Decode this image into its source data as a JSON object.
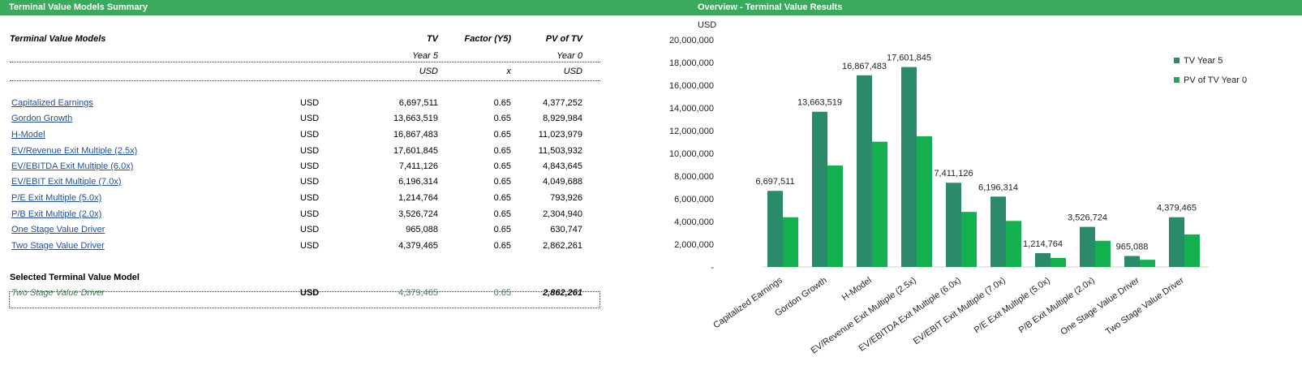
{
  "left_header": "Terminal Value Models Summary",
  "right_header": "Overview  - Terminal Value Results",
  "table": {
    "title": "Terminal Value Models",
    "col_tv": "TV",
    "col_factor": "Factor (Y5)",
    "col_pv": "PV of TV",
    "sub_tv": "Year 5",
    "sub_pv": "Year 0",
    "unit_tv": "USD",
    "unit_factor": "x",
    "unit_pv": "USD",
    "rows": [
      {
        "name": "Capitalized Earnings",
        "currency": "USD",
        "tv": "6,697,511",
        "factor": "0.65",
        "pv": "4,377,252"
      },
      {
        "name": "Gordon Growth",
        "currency": "USD",
        "tv": "13,663,519",
        "factor": "0.65",
        "pv": "8,929,984"
      },
      {
        "name": "H-Model",
        "currency": "USD",
        "tv": "16,867,483",
        "factor": "0.65",
        "pv": "11,023,979"
      },
      {
        "name": "EV/Revenue Exit Multiple (2.5x)",
        "currency": "USD",
        "tv": "17,601,845",
        "factor": "0.65",
        "pv": "11,503,932"
      },
      {
        "name": "EV/EBITDA Exit Multiple (6.0x)",
        "currency": "USD",
        "tv": "7,411,126",
        "factor": "0.65",
        "pv": "4,843,645"
      },
      {
        "name": "EV/EBIT Exit Multiple (7.0x)",
        "currency": "USD",
        "tv": "6,196,314",
        "factor": "0.65",
        "pv": "4,049,688"
      },
      {
        "name": "P/E Exit Multiple (5.0x)",
        "currency": "USD",
        "tv": "1,214,764",
        "factor": "0.65",
        "pv": "793,926"
      },
      {
        "name": "P/B Exit Multiple (2.0x)",
        "currency": "USD",
        "tv": "3,526,724",
        "factor": "0.65",
        "pv": "2,304,940"
      },
      {
        "name": "One Stage Value Driver",
        "currency": "USD",
        "tv": "965,088",
        "factor": "0.65",
        "pv": "630,747"
      },
      {
        "name": "Two Stage Value Driver",
        "currency": "USD",
        "tv": "4,379,465",
        "factor": "0.65",
        "pv": "2,862,261"
      }
    ],
    "selected_label": "Selected Terminal Value Model",
    "selected": {
      "name": "Two Stage Value Driver",
      "currency": "USD",
      "tv": "4,379,465",
      "factor": "0.65",
      "pv": "2,862,261"
    }
  },
  "chart_data": {
    "type": "bar",
    "ylabel": "USD",
    "ylim": [
      0,
      20000000
    ],
    "yticks": [
      "-",
      "2,000,000",
      "4,000,000",
      "6,000,000",
      "8,000,000",
      "10,000,000",
      "12,000,000",
      "14,000,000",
      "16,000,000",
      "18,000,000",
      "20,000,000"
    ],
    "categories": [
      "Capitalized Earnings",
      "Gordon Growth",
      "H-Model",
      "EV/Revenue Exit Multiple (2.5x)",
      "EV/EBITDA Exit Multiple (6.0x)",
      "EV/EBIT Exit Multiple (7.0x)",
      "P/E Exit Multiple (5.0x)",
      "P/B Exit Multiple (2.0x)",
      "One Stage Value Driver",
      "Two Stage Value Driver"
    ],
    "series": [
      {
        "name": "TV Year 5",
        "color": "#2a8a6a",
        "values": [
          6697511,
          13663519,
          16867483,
          17601845,
          7411126,
          6196314,
          1214764,
          3526724,
          965088,
          4379465
        ],
        "labels": [
          "6,697,511",
          "13,663,519",
          "16,867,483",
          "17,601,845",
          "7,411,126",
          "6,196,314",
          "1,214,764",
          "3,526,724",
          "965,088",
          "4,379,465"
        ]
      },
      {
        "name": "PV of TV Year 0",
        "color": "#12b04e",
        "values": [
          4377252,
          8929984,
          11023979,
          11503932,
          4843645,
          4049688,
          793926,
          2304940,
          630747,
          2862261
        ]
      }
    ],
    "legend_position": "top-right",
    "grid": false
  }
}
